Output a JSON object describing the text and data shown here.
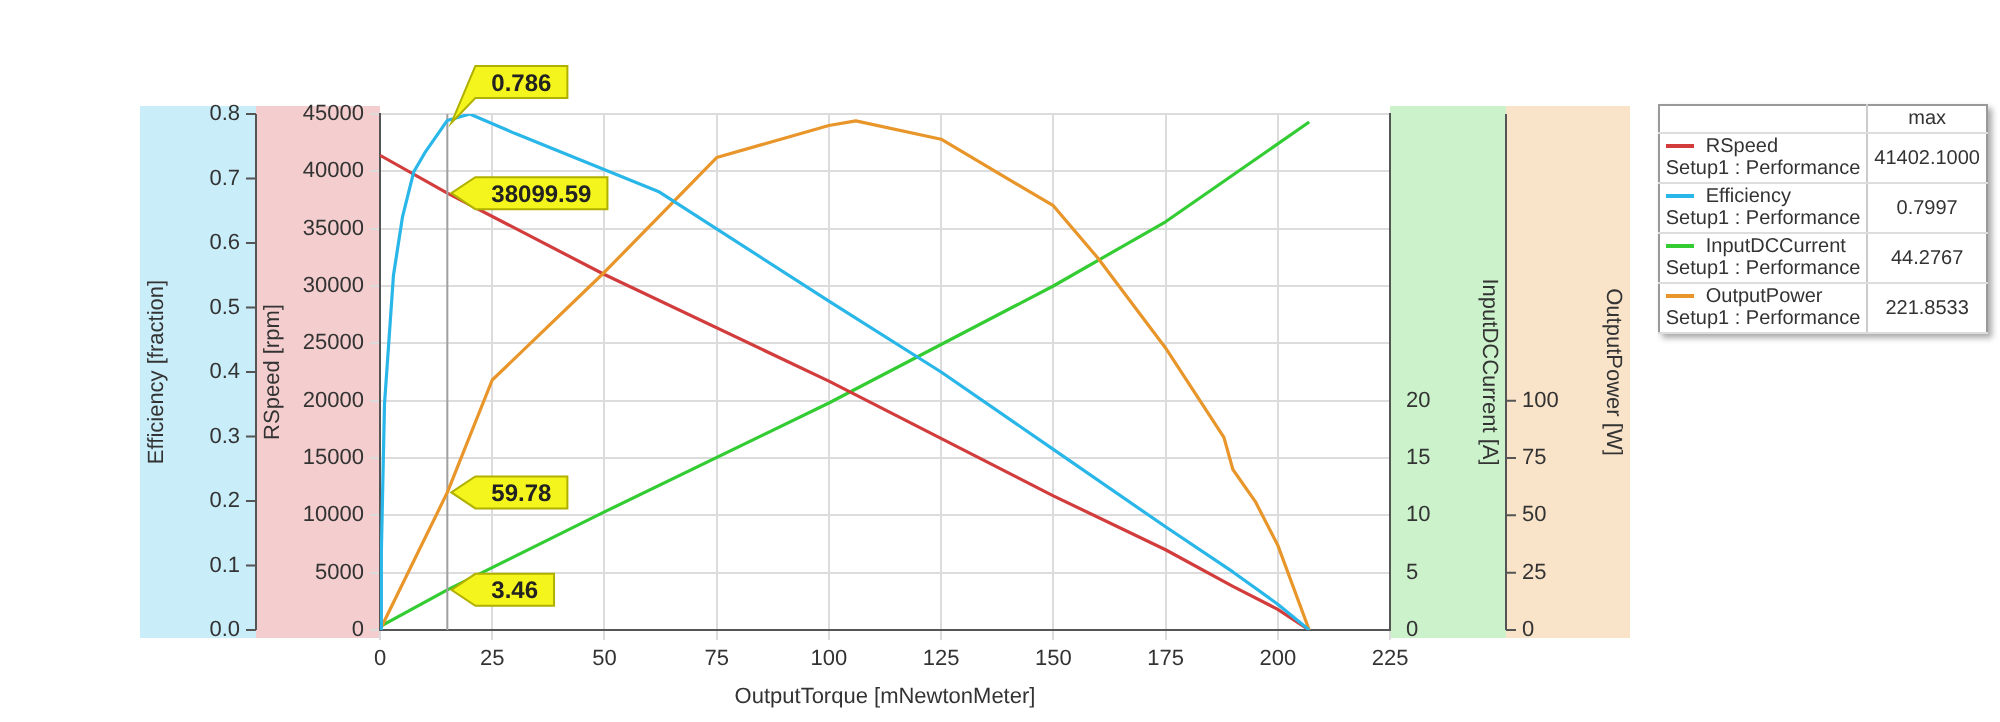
{
  "chart_data": [
    {
      "type": "line",
      "xlabel": "OutputTorque [mNewtonMeter]",
      "ylabel": "RSpeed [rpm]",
      "y2label": "InputDCCurrent [A]",
      "xlim": [
        0,
        225
      ],
      "xticks": [
        0,
        25,
        50,
        75,
        100,
        125,
        150,
        175,
        200,
        225
      ],
      "ylim": [
        0,
        45000
      ],
      "yticks": [
        0,
        5000,
        10000,
        15000,
        20000,
        25000,
        30000,
        35000,
        40000,
        45000
      ],
      "y2lim": [
        0,
        45
      ],
      "y2ticks": [
        0,
        5,
        10,
        15,
        20
      ],
      "grid": true,
      "legend": "top right",
      "series": [
        {
          "name": "RSpeed",
          "color": "#d23c3c",
          "x": [
            0,
            15,
            50,
            100,
            150,
            175,
            190,
            200,
            207
          ],
          "values": [
            41400,
            38100,
            31000,
            21700,
            11700,
            7000,
            3800,
            1800,
            0
          ]
        },
        {
          "name": "InputDCCurrent",
          "color": "#33cc33",
          "axis": "y2",
          "x": [
            0,
            15,
            50,
            100,
            150,
            175,
            207
          ],
          "values": [
            0.3,
            3.5,
            10.3,
            19.8,
            30,
            35.6,
            44.3
          ]
        }
      ],
      "ref_lines": [
        {
          "axis": "x",
          "value": 15,
          "color": "#a0a0a0"
        }
      ],
      "annotations": [
        {
          "text": "38099.59",
          "x": 15,
          "y": 38099.59
        },
        "3.46",
        "max",
        "Setup1 : Performance",
        "41402.1000",
        "Setup1 : Performance",
        "44.2767"
      ]
    },
    {
      "type": "line",
      "ylabel": "Efficiency [fraction]",
      "y2label": "OutputPower [W]",
      "tick_labels": "y",
      "xlim": [
        0,
        225
      ],
      "ylim": [
        0,
        0.8
      ],
      "yticks": [
        {
          "value": 0,
          "label": "0.0"
        },
        {
          "value": 0.1,
          "label": "0.1"
        },
        {
          "value": 0.2,
          "label": "0.2"
        },
        {
          "value": 0.3,
          "label": "0.3"
        },
        {
          "value": 0.4,
          "label": "0.4"
        },
        {
          "value": 0.5,
          "label": "0.5"
        },
        {
          "value": 0.6,
          "label": "0.6"
        },
        {
          "value": 0.7,
          "label": "0.7"
        },
        {
          "value": 0.8,
          "label": "0.8"
        }
      ],
      "y2lim": [
        0,
        225
      ],
      "y2ticks": [
        0,
        25,
        50,
        75,
        100
      ],
      "legend": "top right",
      "series": [
        {
          "name": "Efficiency",
          "color": "#29b6e8",
          "x": [
            0,
            0.3,
            1,
            3,
            5,
            7.5,
            10,
            15,
            20,
            30,
            62,
            100,
            125,
            150,
            175,
            190,
            200,
            207
          ],
          "values": [
            0,
            0.12,
            0.35,
            0.55,
            0.64,
            0.71,
            0.74,
            0.79,
            0.8,
            0.77,
            0.68,
            0.51,
            0.4,
            0.28,
            0.16,
            0.09,
            0.04,
            0
          ]
        },
        {
          "name": "OutputPower",
          "color": "#e8952a",
          "axis": "y2",
          "x": [
            0,
            15,
            25,
            50,
            75,
            100,
            106,
            125,
            150,
            160,
            175,
            188,
            190,
            195,
            200,
            207
          ],
          "values": [
            0,
            60,
            109,
            156,
            206,
            220,
            222,
            214,
            185,
            162,
            123,
            84,
            70,
            56,
            37,
            0
          ]
        }
      ],
      "annotations": [
        {
          "text": "0.786",
          "x": 15,
          "y": 0.786
        },
        "59.78",
        "Setup1 : Performance",
        "0.7997",
        "Setup1 : Performance",
        "221.8533"
      ]
    }
  ]
}
